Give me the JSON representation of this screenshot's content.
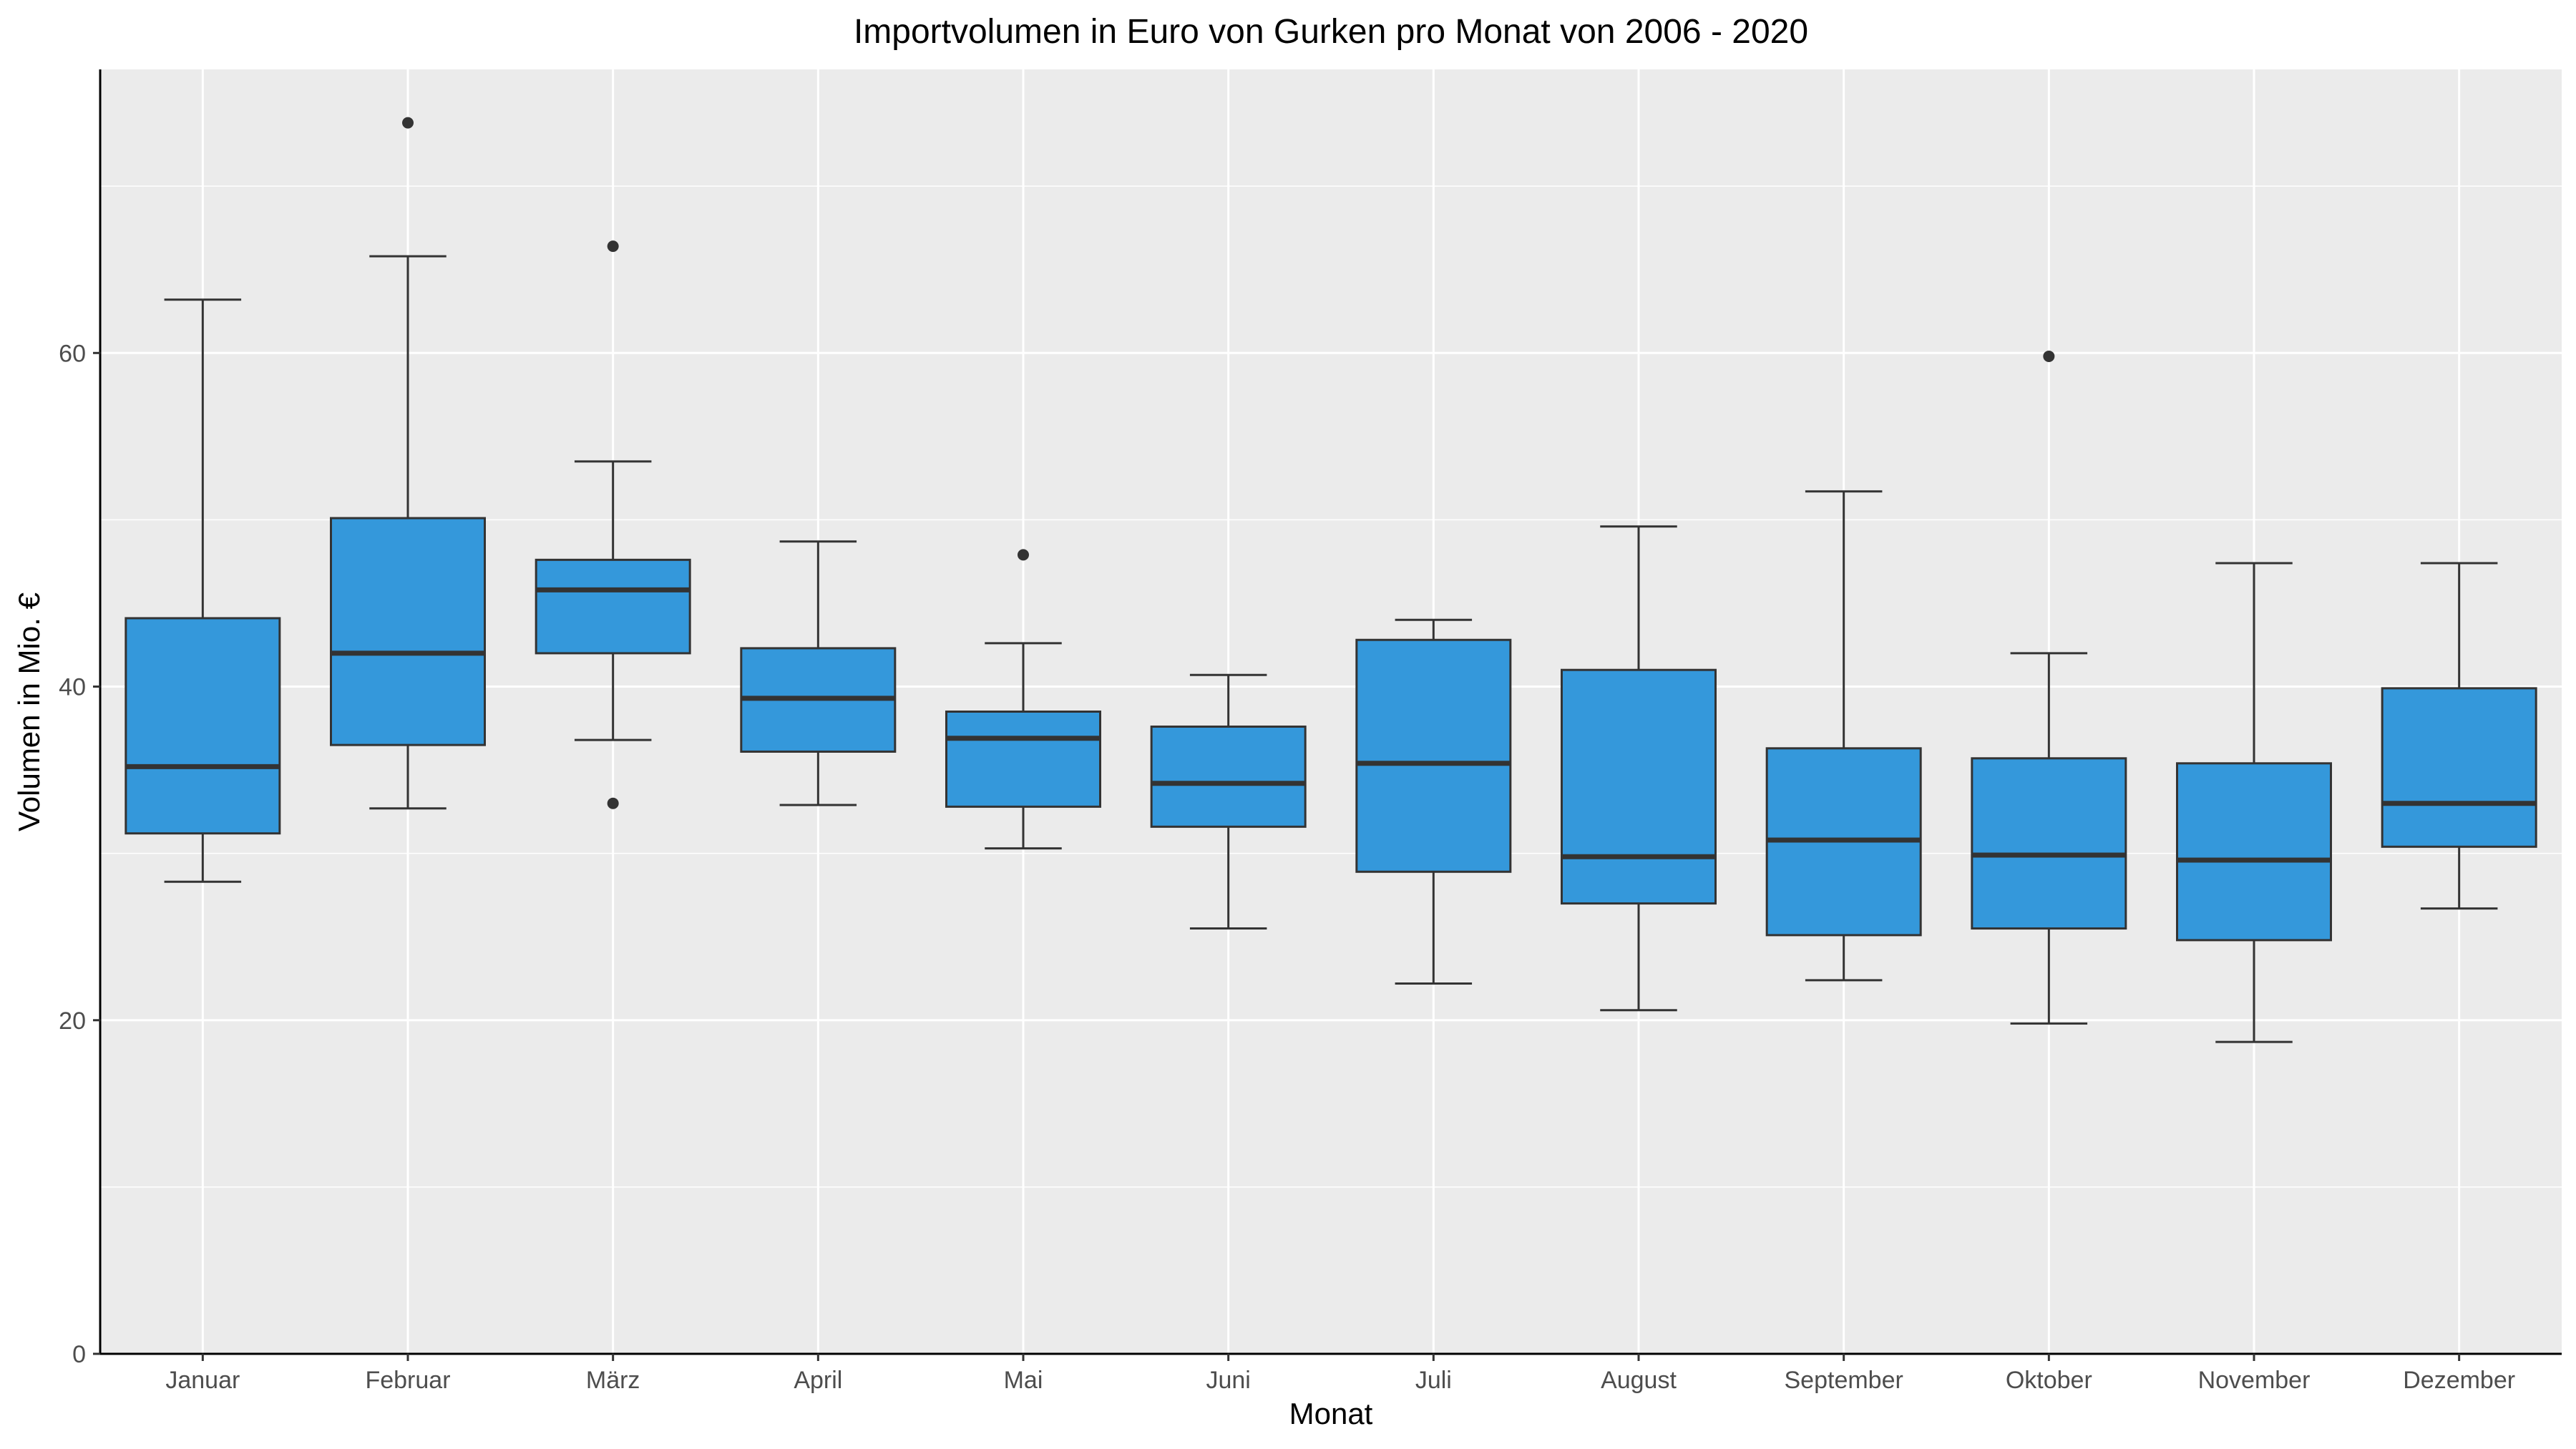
{
  "chart_data": {
    "type": "boxplot",
    "title": "Importvolumen in Euro von Gurken pro Monat von 2006 - 2020",
    "xlabel": "Monat",
    "ylabel": "Volumen in Mio. €",
    "ylim": [
      0,
      77
    ],
    "yticks": [
      0,
      20,
      40,
      60
    ],
    "grid": true,
    "legend": "none",
    "colors": {
      "box_fill": "#3498db",
      "box_stroke": "#333333",
      "panel_bg": "#ebebeb",
      "grid": "#ffffff"
    },
    "categories": [
      "Januar",
      "Februar",
      "März",
      "April",
      "Mai",
      "Juni",
      "Juli",
      "August",
      "September",
      "Oktober",
      "November",
      "Dezember"
    ],
    "boxes": [
      {
        "category": "Januar",
        "whisker_low": 28.3,
        "q1": 31.2,
        "median": 35.2,
        "q3": 44.1,
        "whisker_high": 63.2,
        "outliers": []
      },
      {
        "category": "Februar",
        "whisker_low": 32.7,
        "q1": 36.5,
        "median": 42.0,
        "q3": 50.1,
        "whisker_high": 65.8,
        "outliers": [
          73.8
        ]
      },
      {
        "category": "März",
        "whisker_low": 36.8,
        "q1": 42.0,
        "median": 45.8,
        "q3": 47.6,
        "whisker_high": 53.5,
        "outliers": [
          66.4,
          33.0
        ]
      },
      {
        "category": "April",
        "whisker_low": 32.9,
        "q1": 36.1,
        "median": 39.3,
        "q3": 42.3,
        "whisker_high": 48.7,
        "outliers": []
      },
      {
        "category": "Mai",
        "whisker_low": 30.3,
        "q1": 32.8,
        "median": 36.9,
        "q3": 38.5,
        "whisker_high": 42.6,
        "outliers": [
          47.9
        ]
      },
      {
        "category": "Juni",
        "whisker_low": 25.5,
        "q1": 31.6,
        "median": 34.2,
        "q3": 37.6,
        "whisker_high": 40.7,
        "outliers": []
      },
      {
        "category": "Juli",
        "whisker_low": 22.2,
        "q1": 28.9,
        "median": 35.4,
        "q3": 42.8,
        "whisker_high": 44.0,
        "outliers": []
      },
      {
        "category": "August",
        "whisker_low": 20.6,
        "q1": 27.0,
        "median": 29.8,
        "q3": 41.0,
        "whisker_high": 49.6,
        "outliers": []
      },
      {
        "category": "September",
        "whisker_low": 22.4,
        "q1": 25.1,
        "median": 30.8,
        "q3": 36.3,
        "whisker_high": 51.7,
        "outliers": []
      },
      {
        "category": "Oktober",
        "whisker_low": 19.8,
        "q1": 25.5,
        "median": 29.9,
        "q3": 35.7,
        "whisker_high": 42.0,
        "outliers": [
          59.8
        ]
      },
      {
        "category": "November",
        "whisker_low": 18.7,
        "q1": 24.8,
        "median": 29.6,
        "q3": 35.4,
        "whisker_high": 47.4,
        "outliers": []
      },
      {
        "category": "Dezember",
        "whisker_low": 26.7,
        "q1": 30.4,
        "median": 33.0,
        "q3": 39.9,
        "whisker_high": 47.4,
        "outliers": []
      }
    ]
  }
}
